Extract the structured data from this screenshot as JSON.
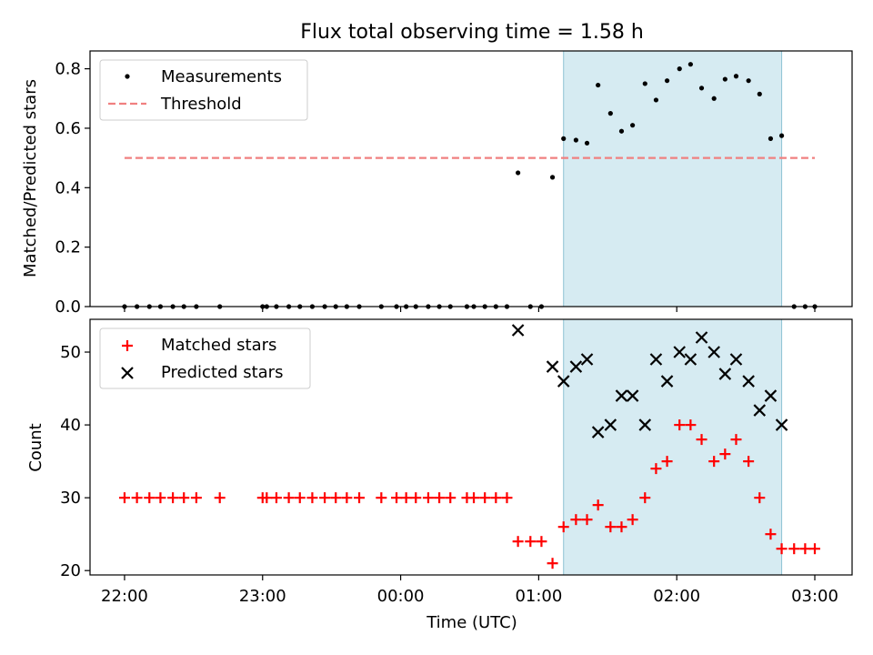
{
  "chart_data": {
    "title": "Flux total observing time = 1.58 h",
    "xlabel": "Time (UTC)",
    "x_unit": "hour of day (UTC), continuing past midnight",
    "x_ticks": [
      {
        "value": 22,
        "label": "22:00"
      },
      {
        "value": 23,
        "label": "23:00"
      },
      {
        "value": 24,
        "label": "00:00"
      },
      {
        "value": 25,
        "label": "01:00"
      },
      {
        "value": 26,
        "label": "02:00"
      },
      {
        "value": 27,
        "label": "03:00"
      }
    ],
    "xlim": [
      21.75,
      27.27
    ],
    "shaded_interval": {
      "x": [
        25.18,
        26.76
      ],
      "color": "#add8e6"
    },
    "panels": [
      {
        "id": "top",
        "type": "scatter",
        "ylabel": "Matched/Predicted stars",
        "ylim": [
          0,
          0.86
        ],
        "y_ticks": [
          {
            "value": 0.0,
            "label": "0.0"
          },
          {
            "value": 0.2,
            "label": "0.2"
          },
          {
            "value": 0.4,
            "label": "0.4"
          },
          {
            "value": 0.6,
            "label": "0.6"
          },
          {
            "value": 0.8,
            "label": "0.8"
          }
        ],
        "legend_position": "upper-left",
        "threshold": {
          "name": "Threshold",
          "y": 0.5,
          "x": [
            22.0,
            27.0
          ],
          "color": "#f08080",
          "style": "dashed"
        },
        "series": [
          {
            "name": "Measurements",
            "marker": "dot",
            "color": "#000000",
            "x": [
              22.0,
              22.09,
              22.18,
              22.26,
              22.35,
              22.43,
              22.52,
              22.69,
              23.0,
              23.03,
              23.1,
              23.19,
              23.27,
              23.36,
              23.45,
              23.53,
              23.61,
              23.7,
              23.86,
              23.97,
              24.04,
              24.11,
              24.2,
              24.28,
              24.36,
              24.48,
              24.53,
              24.61,
              24.69,
              24.77,
              24.85,
              24.94,
              25.02,
              25.1,
              25.18,
              25.27,
              25.35,
              25.43,
              25.52,
              25.6,
              25.68,
              25.77,
              25.85,
              25.93,
              26.02,
              26.1,
              26.18,
              26.27,
              26.35,
              26.43,
              26.52,
              26.6,
              26.68,
              26.76,
              26.85,
              26.93,
              27.0
            ],
            "y": [
              0,
              0,
              0,
              0,
              0,
              0,
              0,
              0,
              0,
              0,
              0,
              0,
              0,
              0,
              0,
              0,
              0,
              0,
              0,
              0,
              0,
              0,
              0,
              0,
              0,
              0,
              0,
              0,
              0,
              0,
              0.45,
              0,
              0,
              0.435,
              0.565,
              0.56,
              0.55,
              0.745,
              0.65,
              0.59,
              0.61,
              0.75,
              0.695,
              0.76,
              0.8,
              0.815,
              0.735,
              0.7,
              0.765,
              0.775,
              0.76,
              0.715,
              0.565,
              0.575,
              0,
              0,
              0
            ]
          }
        ]
      },
      {
        "id": "bottom",
        "type": "scatter",
        "ylabel": "Count",
        "ylim": [
          19.4,
          54.5
        ],
        "y_ticks": [
          {
            "value": 20,
            "label": "20"
          },
          {
            "value": 30,
            "label": "30"
          },
          {
            "value": 40,
            "label": "40"
          },
          {
            "value": 50,
            "label": "50"
          }
        ],
        "legend_position": "upper-left",
        "series": [
          {
            "name": "Matched stars",
            "marker": "plus",
            "color": "#ff0000",
            "x": [
              22.0,
              22.09,
              22.18,
              22.26,
              22.35,
              22.43,
              22.52,
              22.69,
              23.0,
              23.03,
              23.1,
              23.19,
              23.27,
              23.36,
              23.45,
              23.53,
              23.61,
              23.7,
              23.86,
              23.97,
              24.04,
              24.11,
              24.2,
              24.28,
              24.36,
              24.48,
              24.53,
              24.61,
              24.69,
              24.77,
              24.85,
              24.94,
              25.02,
              25.1,
              25.18,
              25.27,
              25.35,
              25.43,
              25.52,
              25.6,
              25.68,
              25.77,
              25.85,
              25.93,
              26.02,
              26.1,
              26.18,
              26.27,
              26.35,
              26.43,
              26.52,
              26.6,
              26.68,
              26.76,
              26.85,
              26.93,
              27.0
            ],
            "y": [
              30,
              30,
              30,
              30,
              30,
              30,
              30,
              30,
              30,
              30,
              30,
              30,
              30,
              30,
              30,
              30,
              30,
              30,
              30,
              30,
              30,
              30,
              30,
              30,
              30,
              30,
              30,
              30,
              30,
              30,
              24,
              24,
              24,
              21,
              26,
              27,
              27,
              29,
              26,
              26,
              27,
              30,
              34,
              35,
              40,
              40,
              38,
              35,
              36,
              38,
              35,
              30,
              25,
              23,
              23,
              23,
              23
            ]
          },
          {
            "name": "Predicted stars",
            "marker": "x",
            "color": "#000000",
            "x": [
              24.85,
              25.1,
              25.18,
              25.27,
              25.35,
              25.43,
              25.52,
              25.6,
              25.68,
              25.77,
              25.85,
              25.93,
              26.02,
              26.1,
              26.18,
              26.27,
              26.35,
              26.43,
              26.52,
              26.6,
              26.68,
              26.76
            ],
            "y": [
              53,
              48,
              46,
              48,
              49,
              39,
              40,
              44,
              44,
              40,
              49,
              46,
              50,
              49,
              52,
              50,
              47,
              49,
              46,
              42,
              44,
              40
            ]
          }
        ]
      }
    ]
  }
}
